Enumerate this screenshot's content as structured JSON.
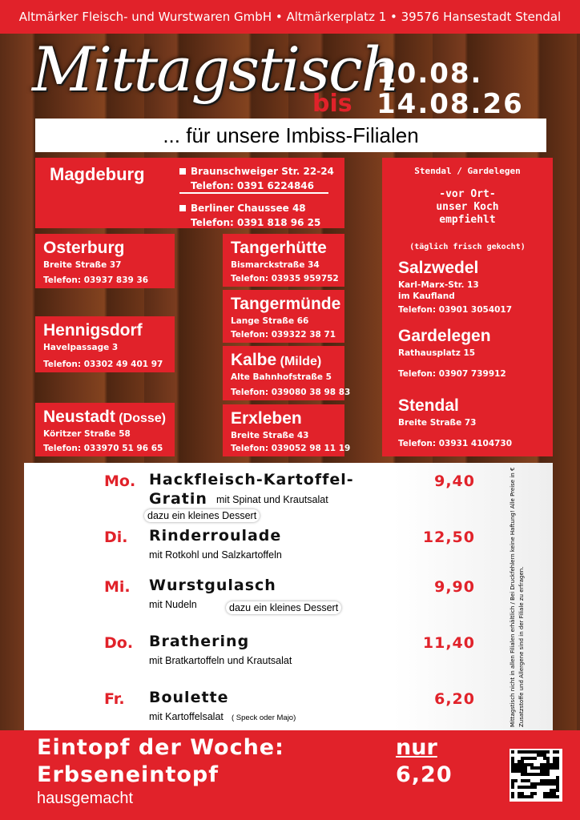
{
  "header": {
    "company": "Altmärker Fleisch- und Wurstwaren GmbH • Altmärkerplatz 1 • 39576 Hansestadt Stendal"
  },
  "title": {
    "main": "Mittagstisch",
    "date_from": "10.08.",
    "date_to_prefix": "bis",
    "date_to": "14.08.26"
  },
  "subtitle": "... für unsere Imbiss-Filialen",
  "magdeburg": {
    "name": "Magdeburg",
    "locations": [
      {
        "street": "Braunschweiger Str. 22-24",
        "phone": "Telefon: 0391 6224846"
      },
      {
        "street": "Berliner Chaussee 48",
        "phone": "Telefon: 0391 818 96 25"
      }
    ]
  },
  "branches": [
    {
      "name": "Osterburg",
      "address": [
        "Breite Straße 37"
      ],
      "phone": "Telefon: 03937 839 36"
    },
    {
      "name": "Hennigsdorf",
      "address": [
        "Havelpassage 3"
      ],
      "phone": "Telefon: 03302 49 401 97"
    },
    {
      "name": "Neustadt",
      "suffix": "(Dosse)",
      "address": [
        "Köritzer Straße 58"
      ],
      "phone": "Telefon: 033970 51 96 65"
    },
    {
      "name": "Tangerhütte",
      "address": [
        "Bismarckstraße 34"
      ],
      "phone": "Telefon: 03935 959752"
    },
    {
      "name": "Tangermünde",
      "address": [
        "Lange Straße 66"
      ],
      "phone": "Telefon: 039322  38 71"
    },
    {
      "name": "Kalbe",
      "suffix": "(Milde)",
      "address": [
        "Alte Bahnhofstraße 5"
      ],
      "phone": "Telefon: 039080 38 98 83"
    },
    {
      "name": "Erxleben",
      "address": [
        "Breite Straße 43"
      ],
      "phone": "Telefon: 039052  98 11 19"
    }
  ],
  "stendal_box": {
    "heading": "Stendal / Gardelegen",
    "recommendation": [
      "-vor Ort-",
      "unser Koch",
      "empfiehlt"
    ],
    "note": "(täglich frisch gekocht)",
    "branches": [
      {
        "name": "Salzwedel",
        "address": [
          "Karl-Marx-Str. 13",
          "im Kaufland"
        ],
        "phone": "Telefon: 03901 3054017"
      },
      {
        "name": "Gardelegen",
        "address": [
          "Rathausplatz 15"
        ],
        "phone": "Telefon: 03907 739912"
      },
      {
        "name": "Stendal",
        "address": [
          "Breite Straße 73"
        ],
        "phone": "Telefon: 03931 4104730"
      }
    ]
  },
  "menu": [
    {
      "day": "Mo.",
      "dish": [
        "Hackfleisch-Kartoffel-",
        "Gratin"
      ],
      "side": "mit Spinat und Krautsalat",
      "extra": "dazu ein kleines Dessert",
      "price": "9,40"
    },
    {
      "day": "Di.",
      "dish": [
        "Rinderroulade"
      ],
      "side": "mit Rotkohl und Salzkartoffeln",
      "price": "12,50"
    },
    {
      "day": "Mi.",
      "dish": [
        "Wurstgulasch"
      ],
      "side": "mit Nudeln",
      "extra": "dazu ein kleines Dessert",
      "price": "9,90"
    },
    {
      "day": "Do.",
      "dish": [
        "Brathering"
      ],
      "side": "mit Bratkartoffeln und Krautsalat",
      "price": "11,40"
    },
    {
      "day": "Fr.",
      "dish": [
        "Boulette"
      ],
      "side": "mit Kartoffelsalat",
      "extra": "( Speck oder Majo)",
      "price": "6,20"
    }
  ],
  "note": [
    "Mittagstisch nicht in allen Filialen erhältlich / Bei Druckfehlern keine Haftung! Alle Preise in €",
    "Zusatzstoffe und Allergene sind in der Filiale zu erfragen."
  ],
  "footer": {
    "title": "Eintopf der Woche:",
    "dish": "Erbseneintopf",
    "detail": "hausgemacht",
    "price_prefix": "nur",
    "price": "6,20"
  }
}
